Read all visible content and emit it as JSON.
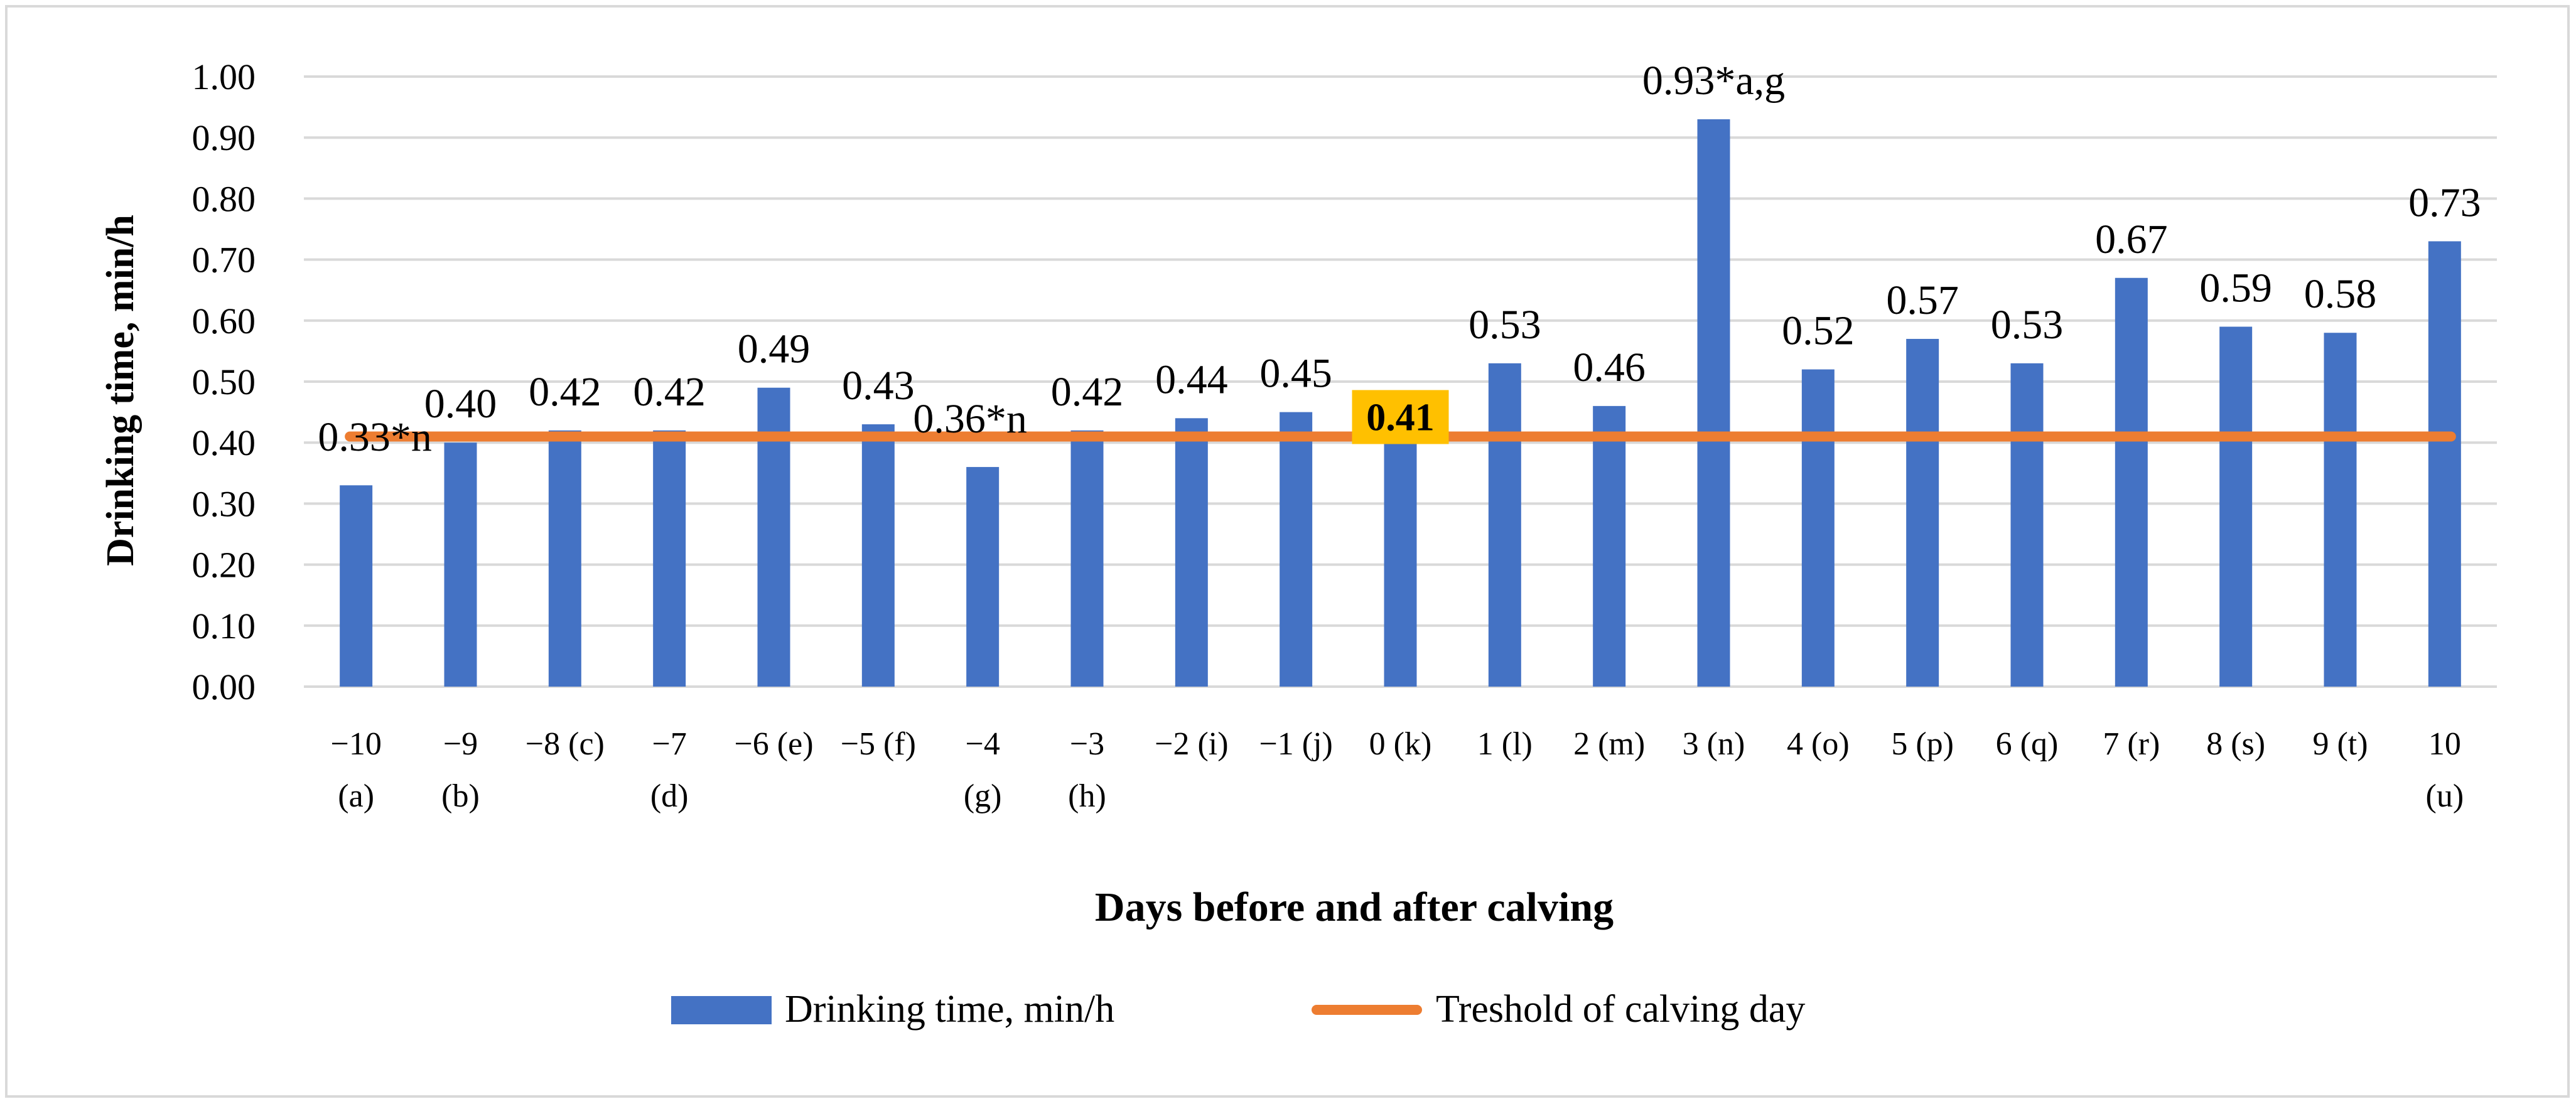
{
  "chart_data": {
    "type": "bar",
    "title": "",
    "xlabel": "Days before and after calving",
    "ylabel": "Drinking time, min/h",
    "ylim": [
      0,
      1.0
    ],
    "y_ticks": [
      "0.00",
      "0.10",
      "0.20",
      "0.30",
      "0.40",
      "0.50",
      "0.60",
      "0.70",
      "0.80",
      "0.90",
      "1.00"
    ],
    "grid": true,
    "categories": [
      [
        "−10",
        "(a)"
      ],
      [
        "−9",
        "(b)"
      ],
      [
        "−8 (c)"
      ],
      [
        "−7",
        "(d)"
      ],
      [
        "−6 (e)"
      ],
      [
        "−5 (f)"
      ],
      [
        "−4",
        "(g)"
      ],
      [
        "−3",
        "(h)"
      ],
      [
        "−2 (i)"
      ],
      [
        "−1 (j)"
      ],
      [
        "0 (k)"
      ],
      [
        "1 (l)"
      ],
      [
        "2 (m)"
      ],
      [
        "3 (n)"
      ],
      [
        "4 (o)"
      ],
      [
        "5 (p)"
      ],
      [
        "6 (q)"
      ],
      [
        "7 (r)"
      ],
      [
        "8 (s)"
      ],
      [
        "9 (t)"
      ],
      [
        "10",
        "(u)"
      ]
    ],
    "series": [
      {
        "name": "Drinking time, min/h",
        "color": "#4472c4",
        "values": [
          0.33,
          0.4,
          0.42,
          0.42,
          0.49,
          0.43,
          0.36,
          0.42,
          0.44,
          0.45,
          0.41,
          0.53,
          0.46,
          0.93,
          0.52,
          0.57,
          0.53,
          0.67,
          0.59,
          0.58,
          0.73
        ],
        "labels": [
          "0.33*n",
          "0.40",
          "0.42",
          "0.42",
          "0.49",
          "0.43",
          "0.36*n",
          "0.42",
          "0.44",
          "0.45",
          "0.41",
          "0.53",
          "0.46",
          "0.93*a,g",
          "0.52",
          "0.57",
          "0.53",
          "0.67",
          "0.59",
          "0.58",
          "0.73"
        ]
      }
    ],
    "threshold": {
      "name": "Treshold of calving day",
      "value": 0.41,
      "color": "#ed7d31"
    },
    "highlight": {
      "index": 10,
      "fill": "#ffc000"
    },
    "legend_position": "bottom-center"
  }
}
